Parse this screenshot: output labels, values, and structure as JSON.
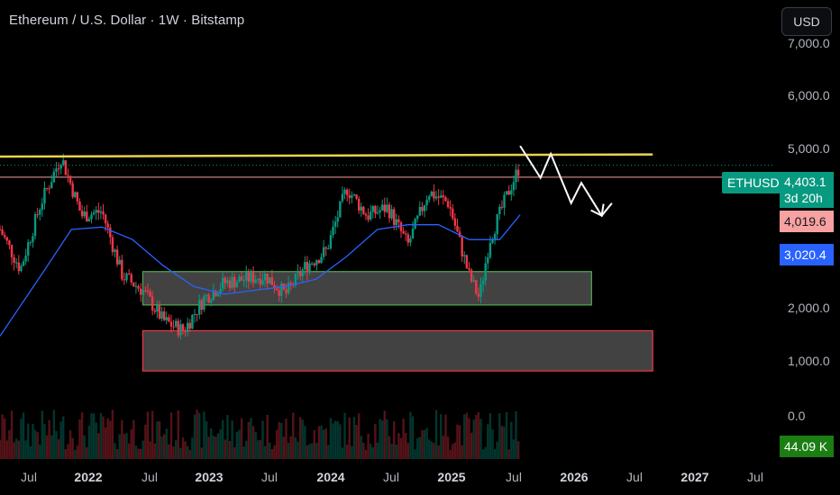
{
  "header": {
    "title": "Ethereum / U.S. Dollar · 1W · Bitstamp"
  },
  "currency_button": {
    "label": "USD"
  },
  "price_axis": {
    "ticks": [
      "7,000.0",
      "6,000.0",
      "5,000.0",
      "2,000.0",
      "1,000.0",
      "0.0"
    ]
  },
  "time_axis": {
    "ticks": [
      {
        "label": "Jul",
        "year": false
      },
      {
        "label": "2022",
        "year": true
      },
      {
        "label": "Jul",
        "year": false
      },
      {
        "label": "2023",
        "year": true
      },
      {
        "label": "Jul",
        "year": false
      },
      {
        "label": "2024",
        "year": true
      },
      {
        "label": "Jul",
        "year": false
      },
      {
        "label": "2025",
        "year": true
      },
      {
        "label": "Jul",
        "year": false
      },
      {
        "label": "2026",
        "year": true
      },
      {
        "label": "Jul",
        "year": false
      },
      {
        "label": "2027",
        "year": true
      },
      {
        "label": "Jul",
        "year": false
      }
    ]
  },
  "last_price": {
    "symbol": "ETHUSD",
    "price": "4,403.1",
    "countdown": "3d 20h",
    "color": "#089981"
  },
  "levels": [
    {
      "label": "4,019.6",
      "color": "#f7a1a1",
      "text_color": "#131722"
    },
    {
      "label": "3,020.4",
      "color": "#2962ff",
      "text_color": "#ffffff"
    }
  ],
  "volume": {
    "label": "44.09 K",
    "color": "#1b7d12"
  },
  "colors": {
    "up": "#089981",
    "down": "#f23645",
    "ma": "#2962ff",
    "trendline": "#e8d44d",
    "support_zone": "#4caf50",
    "lower_zone": "#f23645",
    "projection": "#ffffff"
  },
  "chart_data": {
    "type": "candlestick",
    "title": "Ethereum / U.S. Dollar · 1W · Bitstamp",
    "interval": "1W",
    "y_scale": "log",
    "ylim": [
      700,
      7500
    ],
    "x_range": [
      "2021-05",
      "2027-09"
    ],
    "series": [
      {
        "name": "ETHUSD",
        "x": [
          "2021-05",
          "2021-07",
          "2021-09",
          "2021-11",
          "2022-01",
          "2022-03",
          "2022-05",
          "2022-07",
          "2022-09",
          "2022-11",
          "2023-01",
          "2023-03",
          "2023-05",
          "2023-07",
          "2023-09",
          "2023-11",
          "2024-01",
          "2024-03",
          "2024-05",
          "2024-07",
          "2024-09",
          "2024-11",
          "2025-01",
          "2025-03",
          "2025-04",
          "2025-05",
          "2025-07",
          "2025-08"
        ],
        "close": [
          2700,
          2000,
          3300,
          4700,
          3000,
          3100,
          1900,
          1700,
          1350,
          1250,
          1600,
          1800,
          1850,
          1900,
          1650,
          2050,
          2300,
          3700,
          3000,
          3200,
          2400,
          3600,
          3300,
          1900,
          1600,
          2500,
          3700,
          4403.1
        ]
      },
      {
        "name": "MA",
        "x": [
          "2021-05",
          "2021-09",
          "2021-12",
          "2022-03",
          "2022-06",
          "2022-09",
          "2022-12",
          "2023-03",
          "2023-06",
          "2023-09",
          "2023-12",
          "2024-03",
          "2024-06",
          "2024-09",
          "2024-12",
          "2025-03",
          "2025-06",
          "2025-08"
        ],
        "values": [
          1200,
          1900,
          2700,
          2750,
          2500,
          2050,
          1750,
          1650,
          1700,
          1750,
          1850,
          2200,
          2700,
          2800,
          2800,
          2500,
          2500,
          3020.4
        ]
      }
    ],
    "levels": [
      {
        "value": 4019.6
      },
      {
        "value": 3020.4
      }
    ],
    "trendline": {
      "from": [
        "2021-05",
        4700
      ],
      "to": [
        "2026-09",
        4780
      ]
    },
    "zones": [
      {
        "from": "2022-07",
        "to": "2026-03",
        "low": 1520,
        "high": 1960
      },
      {
        "from": "2022-07",
        "to": "2026-09",
        "low": 920,
        "high": 1250
      }
    ],
    "projection": {
      "x": [
        "2025-08",
        "2025-10",
        "2025-11",
        "2026-01",
        "2026-02",
        "2026-04",
        "2026-05"
      ],
      "y": [
        5100,
        4000,
        4800,
        3300,
        3850,
        3000,
        3300
      ]
    },
    "volume_last": "44.09 K"
  }
}
